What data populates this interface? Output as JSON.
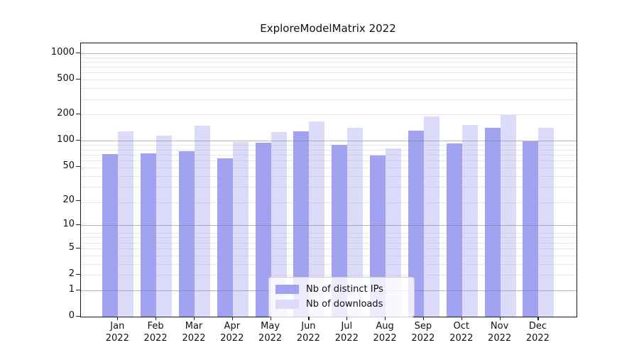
{
  "figure": {
    "background": "#ffffff"
  },
  "chart_data": {
    "type": "bar",
    "title": "ExploreModelMatrix 2022",
    "categories": [
      "Jan",
      "Feb",
      "Mar",
      "Apr",
      "May",
      "Jun",
      "Jul",
      "Aug",
      "Sep",
      "Oct",
      "Nov",
      "Dec"
    ],
    "category_year": "2022",
    "series": [
      {
        "name": "Nb of distinct IPs",
        "color": "#a2a2f2",
        "values": [
          70,
          72,
          76,
          63,
          95,
          128,
          90,
          67,
          130,
          93,
          141,
          98
        ]
      },
      {
        "name": "Nb of downloads",
        "color": "#dcdcfa",
        "values": [
          127,
          115,
          150,
          96,
          126,
          166,
          140,
          82,
          190,
          153,
          196,
          140
        ]
      }
    ],
    "xlabel": "",
    "ylabel": "",
    "yscale": "log1p",
    "ylim": [
      0,
      1296
    ],
    "yticks": [
      0,
      1,
      2,
      5,
      10,
      20,
      50,
      100,
      200,
      500,
      1000
    ],
    "grid": {
      "major_values": [
        1,
        10,
        100,
        1000
      ],
      "minor_values": [
        2,
        3,
        4,
        5,
        6,
        7,
        8,
        19,
        29,
        39,
        49,
        59,
        69,
        79,
        89,
        199,
        299,
        399,
        499,
        599,
        699,
        799,
        899
      ],
      "major_color": "rgba(125,125,125,0.55)",
      "minor_color": "rgba(170,170,170,0.28)"
    },
    "legend": {
      "position": "lower-center"
    }
  }
}
